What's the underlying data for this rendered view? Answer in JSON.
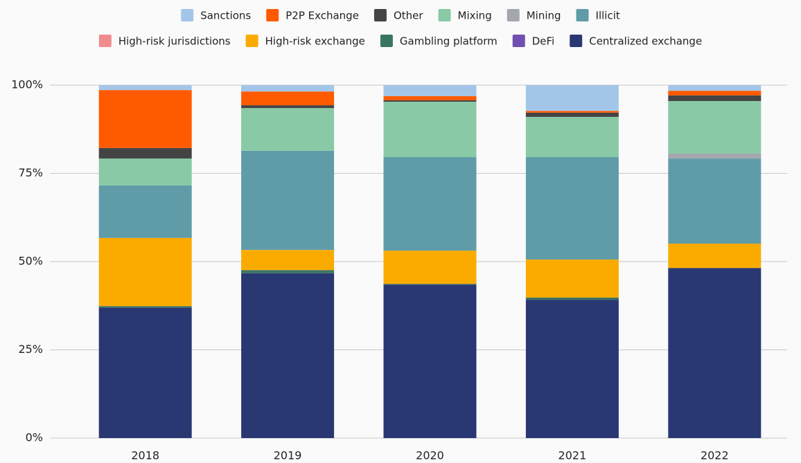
{
  "chart_data": {
    "type": "stacked_bar",
    "categories": [
      "2018",
      "2019",
      "2020",
      "2021",
      "2022"
    ],
    "series": [
      {
        "name": "Centralized exchange",
        "color": "#293872",
        "values": [
          37,
          46.7,
          43.5,
          39.2,
          48.2
        ]
      },
      {
        "name": "DeFi",
        "color": "#6f4fb0",
        "values": [
          0,
          0,
          0,
          0,
          0
        ]
      },
      {
        "name": "Gambling platform",
        "color": "#3a7564",
        "values": [
          0.4,
          0.9,
          0.2,
          0.6,
          0
        ]
      },
      {
        "name": "High-risk exchange",
        "color": "#fbab00",
        "values": [
          19.3,
          5.7,
          9.4,
          10.8,
          6.9
        ]
      },
      {
        "name": "High-risk jurisdictions",
        "color": "#f28b8c",
        "values": [
          0,
          0,
          0,
          0,
          0
        ]
      },
      {
        "name": "Illicit",
        "color": "#5f9ca8",
        "values": [
          14.9,
          28.1,
          26.5,
          29,
          24.1
        ]
      },
      {
        "name": "Mining",
        "color": "#a4a8ae",
        "values": [
          0,
          0,
          0,
          0,
          1.4
        ]
      },
      {
        "name": "Mixing",
        "color": "#89c9a6",
        "values": [
          7.6,
          12.1,
          15.7,
          11.4,
          14.9
        ]
      },
      {
        "name": "Other",
        "color": "#444444",
        "values": [
          3,
          0.8,
          0.4,
          1.2,
          1.6
        ]
      },
      {
        "name": "P2P Exchange",
        "color": "#ff5a00",
        "values": [
          16.4,
          3.9,
          1.2,
          0.5,
          1.3
        ]
      },
      {
        "name": "Sanctions",
        "color": "#a3c6e8",
        "values": [
          1.4,
          1.8,
          3.1,
          7.3,
          1.6
        ]
      }
    ],
    "ylim": [
      0,
      100
    ],
    "yticks": [
      {
        "value": 0,
        "label": "0%"
      },
      {
        "value": 25,
        "label": "25%"
      },
      {
        "value": 50,
        "label": "50%"
      },
      {
        "value": 75,
        "label": "75%"
      },
      {
        "value": 100,
        "label": "100%"
      }
    ],
    "grid": true,
    "legend": "top"
  }
}
